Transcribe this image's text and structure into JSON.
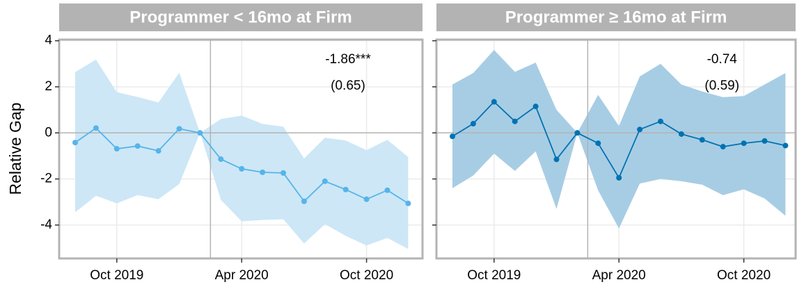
{
  "chart_data": [
    {
      "type": "line",
      "title": "Programmer < 16mo at Firm",
      "ylabel": "Relative Gap",
      "ytick_labels": true,
      "categories": [
        null,
        null,
        "Oct 2019",
        null,
        null,
        null,
        null,
        null,
        "Apr 2020",
        null,
        null,
        null,
        null,
        null,
        "Oct 2020",
        null,
        null
      ],
      "values": [
        -0.42,
        0.21,
        -0.69,
        -0.57,
        -0.78,
        0.18,
        0,
        -1.14,
        -1.56,
        -1.71,
        -1.74,
        -2.97,
        -2.1,
        -2.46,
        -2.88,
        -2.49,
        -3.06
      ],
      "upper": [
        2.64,
        3.18,
        1.77,
        1.56,
        1.32,
        2.61,
        0,
        0.6,
        0.75,
        0.39,
        0.27,
        -1.11,
        -0.21,
        -0.33,
        -0.75,
        -0.3,
        -1.05
      ],
      "lower": [
        -3.45,
        -2.73,
        -3.06,
        -2.7,
        -2.88,
        -2.22,
        0,
        -2.91,
        -3.84,
        -3.78,
        -3.75,
        -4.8,
        -3.96,
        -4.47,
        -4.89,
        -4.56,
        -5.04
      ],
      "color": "#56b4e9",
      "band_color": "#cde7f6",
      "ylim": [
        -5.45,
        4.05
      ],
      "yticks": [
        -4,
        -2,
        0,
        2,
        4
      ],
      "grid": true,
      "hline": 0,
      "vline": 6.5,
      "annotations": [
        "-1.86***",
        "(0.65)"
      ]
    },
    {
      "type": "line",
      "title": "Programmer ≥ 16mo at Firm",
      "ytick_labels": false,
      "categories": [
        null,
        null,
        "Oct 2019",
        null,
        null,
        null,
        null,
        null,
        "Apr 2020",
        null,
        null,
        null,
        null,
        null,
        "Oct 2020",
        null,
        null
      ],
      "values": [
        -0.15,
        0.4,
        1.35,
        0.5,
        1.15,
        -1.15,
        0,
        -0.45,
        -1.95,
        0.15,
        0.5,
        -0.05,
        -0.3,
        -0.6,
        -0.45,
        -0.35,
        -0.55
      ],
      "upper": [
        2.1,
        2.6,
        3.6,
        2.65,
        3.05,
        1.0,
        0,
        1.65,
        0.3,
        2.45,
        3.0,
        2.1,
        1.8,
        1.55,
        1.6,
        2.1,
        2.6
      ],
      "lower": [
        -2.4,
        -1.85,
        -0.9,
        -1.65,
        -0.8,
        -3.3,
        0,
        -2.5,
        -4.15,
        -2.2,
        -2.0,
        -2.1,
        -2.25,
        -2.7,
        -2.45,
        -2.85,
        -3.6
      ],
      "color": "#0072b2",
      "band_color": "#a7cde4",
      "ylim": [
        -5.45,
        4.05
      ],
      "yticks": [
        -4,
        -2,
        0,
        2,
        4
      ],
      "grid": true,
      "hline": 0,
      "vline": 6.5,
      "annotations": [
        "-0.74",
        "(0.59)"
      ]
    }
  ]
}
